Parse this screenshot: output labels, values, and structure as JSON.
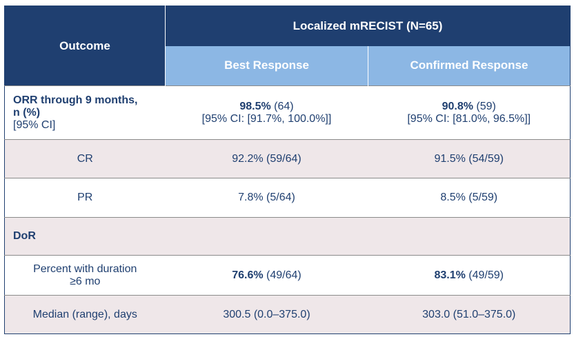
{
  "header": {
    "outcome": "Outcome",
    "group": "Localized mRECIST (N=65)",
    "col_best": "Best Response",
    "col_confirmed": "Confirmed Response"
  },
  "rows": {
    "orr": {
      "label_line1": "ORR through 9 months,",
      "label_line2": "n (%)",
      "label_line3": "[95% CI]",
      "best_pct": "98.5%",
      "best_n": " (64)",
      "best_ci": "[95% CI: [91.7%, 100.0%]]",
      "conf_pct": "90.8%",
      "conf_n": " (59)",
      "conf_ci": "[95% CI: [81.0%, 96.5%]]"
    },
    "cr": {
      "label": "CR",
      "best": "92.2% (59/64)",
      "conf": "91.5% (54/59)"
    },
    "pr": {
      "label": "PR",
      "best": "7.8% (5/64)",
      "conf": "8.5% (5/59)"
    },
    "dor": {
      "label": "DoR"
    },
    "pct6": {
      "label_line1": "Percent with duration",
      "label_line2": "≥6 mo",
      "best_pct": "76.6%",
      "best_n": " (49/64)",
      "conf_pct": "83.1%",
      "conf_n": " (49/59)"
    },
    "median": {
      "label": "Median (range), days",
      "best": "300.5 (0.0–375.0)",
      "conf": "303.0 (51.0–375.0)"
    }
  }
}
